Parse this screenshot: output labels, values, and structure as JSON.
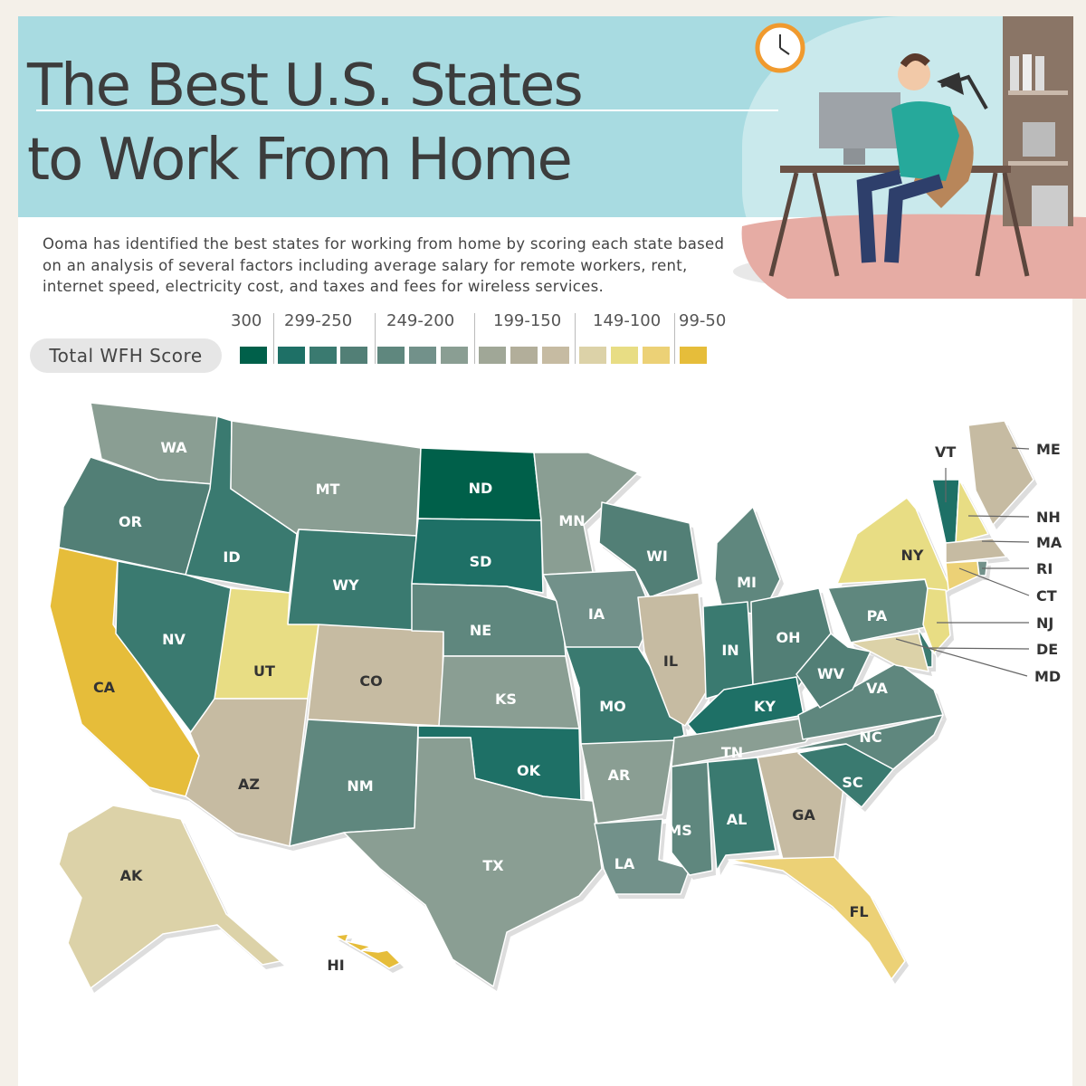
{
  "header": {
    "title_line1": "The Best U.S. States",
    "title_line2": "to Work From Home"
  },
  "intro": "Ooma has identified the best states for working from home by scoring each state based on an analysis of several factors including average salary for remote workers, rent, internet speed, electricity cost, and taxes and fees for wireless services.",
  "legend": {
    "label": "Total WFH Score",
    "ranges": [
      {
        "label": "300",
        "colors": [
          "#00604a"
        ]
      },
      {
        "label": "299-250",
        "colors": [
          "#1e7066",
          "#3a7a70",
          "#527f76"
        ]
      },
      {
        "label": "249-200",
        "colors": [
          "#5f877e",
          "#72918a",
          "#8a9e93"
        ]
      },
      {
        "label": "199-150",
        "colors": [
          "#a0a797",
          "#b2ae9a",
          "#c6bba2"
        ]
      },
      {
        "label": "149-100",
        "colors": [
          "#dcd2a8",
          "#e8dd84",
          "#ecd176"
        ]
      },
      {
        "label": "99-50",
        "colors": [
          "#e6bd3a"
        ]
      }
    ]
  },
  "states": [
    {
      "abbr": "WA",
      "color": "#8a9e93"
    },
    {
      "abbr": "OR",
      "color": "#527f76"
    },
    {
      "abbr": "CA",
      "color": "#e6bd3a"
    },
    {
      "abbr": "ID",
      "color": "#3a7a70"
    },
    {
      "abbr": "NV",
      "color": "#3a7a70"
    },
    {
      "abbr": "MT",
      "color": "#8a9e93"
    },
    {
      "abbr": "WY",
      "color": "#3a7a70"
    },
    {
      "abbr": "UT",
      "color": "#e8dd84"
    },
    {
      "abbr": "CO",
      "color": "#c6bba2"
    },
    {
      "abbr": "AZ",
      "color": "#c6bba2"
    },
    {
      "abbr": "NM",
      "color": "#5f877e"
    },
    {
      "abbr": "ND",
      "color": "#00604a"
    },
    {
      "abbr": "SD",
      "color": "#1e7066"
    },
    {
      "abbr": "NE",
      "color": "#5f877e"
    },
    {
      "abbr": "KS",
      "color": "#8a9e93"
    },
    {
      "abbr": "OK",
      "color": "#1e7066"
    },
    {
      "abbr": "TX",
      "color": "#8a9e93"
    },
    {
      "abbr": "MN",
      "color": "#8a9e93"
    },
    {
      "abbr": "IA",
      "color": "#72918a"
    },
    {
      "abbr": "MO",
      "color": "#3a7a70"
    },
    {
      "abbr": "AR",
      "color": "#8a9e93"
    },
    {
      "abbr": "LA",
      "color": "#72918a"
    },
    {
      "abbr": "WI",
      "color": "#527f76"
    },
    {
      "abbr": "MI",
      "color": "#5f877e"
    },
    {
      "abbr": "IL",
      "color": "#c6bba2"
    },
    {
      "abbr": "IN",
      "color": "#3a7a70"
    },
    {
      "abbr": "OH",
      "color": "#527f76"
    },
    {
      "abbr": "KY",
      "color": "#1e7066"
    },
    {
      "abbr": "TN",
      "color": "#8a9e93"
    },
    {
      "abbr": "MS",
      "color": "#5f877e"
    },
    {
      "abbr": "AL",
      "color": "#3a7a70"
    },
    {
      "abbr": "GA",
      "color": "#c6bba2"
    },
    {
      "abbr": "FL",
      "color": "#ecd176"
    },
    {
      "abbr": "SC",
      "color": "#3a7a70"
    },
    {
      "abbr": "NC",
      "color": "#5f877e"
    },
    {
      "abbr": "VA",
      "color": "#5f877e"
    },
    {
      "abbr": "WV",
      "color": "#527f76"
    },
    {
      "abbr": "PA",
      "color": "#5f877e"
    },
    {
      "abbr": "NY",
      "color": "#e8dd84"
    },
    {
      "abbr": "VT",
      "color": "#1e7066"
    },
    {
      "abbr": "NH",
      "color": "#e8dd84"
    },
    {
      "abbr": "ME",
      "color": "#c6bba2"
    },
    {
      "abbr": "MA",
      "color": "#c6bba2"
    },
    {
      "abbr": "CT",
      "color": "#ecd176"
    },
    {
      "abbr": "RI",
      "color": "#72918a"
    },
    {
      "abbr": "NJ",
      "color": "#e8dd84"
    },
    {
      "abbr": "DE",
      "color": "#3a7a70"
    },
    {
      "abbr": "MD",
      "color": "#dcd2a8"
    },
    {
      "abbr": "AK",
      "color": "#dcd2a8"
    },
    {
      "abbr": "HI",
      "color": "#e6bd3a"
    }
  ]
}
